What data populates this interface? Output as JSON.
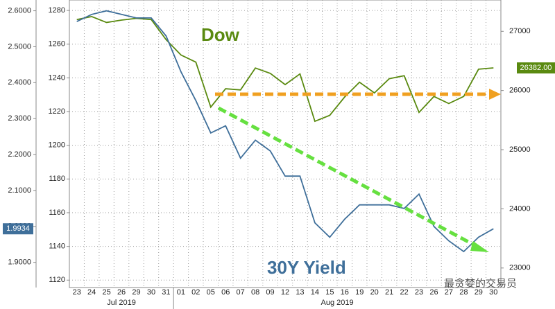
{
  "chart_data": {
    "type": "line",
    "categories": [
      "23",
      "24",
      "25",
      "26",
      "29",
      "30",
      "31",
      "01",
      "02",
      "05",
      "06",
      "07",
      "08",
      "09",
      "12",
      "13",
      "14",
      "15",
      "16",
      "19",
      "20",
      "21",
      "22",
      "23",
      "26",
      "27",
      "28",
      "29",
      "30"
    ],
    "x_groups": [
      "Jul 2019",
      "Aug 2019"
    ],
    "series": [
      {
        "name": "Dow",
        "color": "#5a8a10",
        "axis": "y2",
        "last_label": "26382.00",
        "values": [
          27200,
          27250,
          27150,
          27190,
          27220,
          27200,
          26860,
          26600,
          26480,
          25720,
          26030,
          26010,
          26380,
          26290,
          26100,
          26280,
          25480,
          25580,
          25890,
          26140,
          25960,
          26200,
          26250,
          25630,
          25900,
          25780,
          25900,
          26360,
          26382
        ]
      },
      {
        "name": "30Y Yield",
        "color": "#3f6f9a",
        "axis": "y",
        "last_label": "1.9934",
        "values": [
          2.57,
          2.59,
          2.6,
          2.59,
          2.58,
          2.58,
          2.53,
          2.43,
          2.35,
          2.26,
          2.28,
          2.19,
          2.24,
          2.21,
          2.14,
          2.14,
          2.01,
          1.97,
          2.02,
          2.06,
          2.06,
          2.06,
          2.05,
          2.09,
          2.0,
          1.96,
          1.93,
          1.97,
          1.9934
        ]
      }
    ],
    "ylim": [
      1.83,
      2.63
    ],
    "yticks": [
      {
        "value": 1.9,
        "label": "1.9000"
      },
      {
        "value": 2.0,
        "label": "2.0000"
      },
      {
        "value": 2.1,
        "label": "2.1000"
      },
      {
        "value": 2.2,
        "label": "2.2000"
      },
      {
        "value": 2.3,
        "label": "2.3000"
      },
      {
        "value": 2.4,
        "label": "2.4000"
      },
      {
        "value": 2.5,
        "label": "2.5000"
      },
      {
        "value": 2.6,
        "label": "2.6000"
      }
    ],
    "y3lim": [
      1115.6,
      1286.2
    ],
    "y3ticks": [
      1120,
      1140,
      1160,
      1180,
      1200,
      1220,
      1240,
      1260,
      1280
    ],
    "y2lim": [
      22670,
      27530
    ],
    "y2ticks": [
      23000,
      24000,
      25000,
      26000,
      27000
    ],
    "grid": true,
    "annotations": [
      "Dow",
      "30Y Yield"
    ],
    "watermark": "最贪婪的交易员"
  }
}
